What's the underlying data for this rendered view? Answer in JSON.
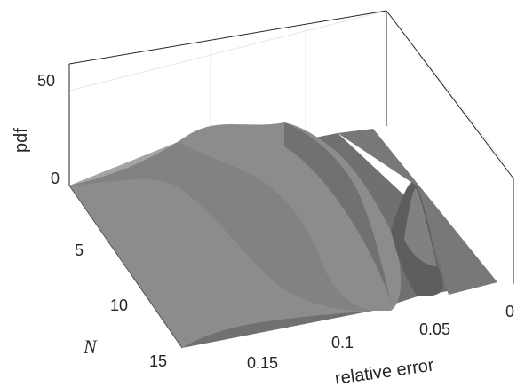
{
  "chart_data": {
    "type": "surface",
    "zlabel": "pdf",
    "xlabel": "relative error",
    "ylabel": "N",
    "z_ticks": [
      "0",
      "50"
    ],
    "y_ticks": [
      "5",
      "10",
      "15"
    ],
    "x_ticks": [
      "0.15",
      "0.1",
      "0.05",
      "0"
    ],
    "zlim": [
      0,
      55
    ],
    "ylim": [
      1,
      15
    ],
    "xlim": [
      0,
      0.2
    ],
    "grid": true,
    "surface_color": "#7a7a7a"
  }
}
